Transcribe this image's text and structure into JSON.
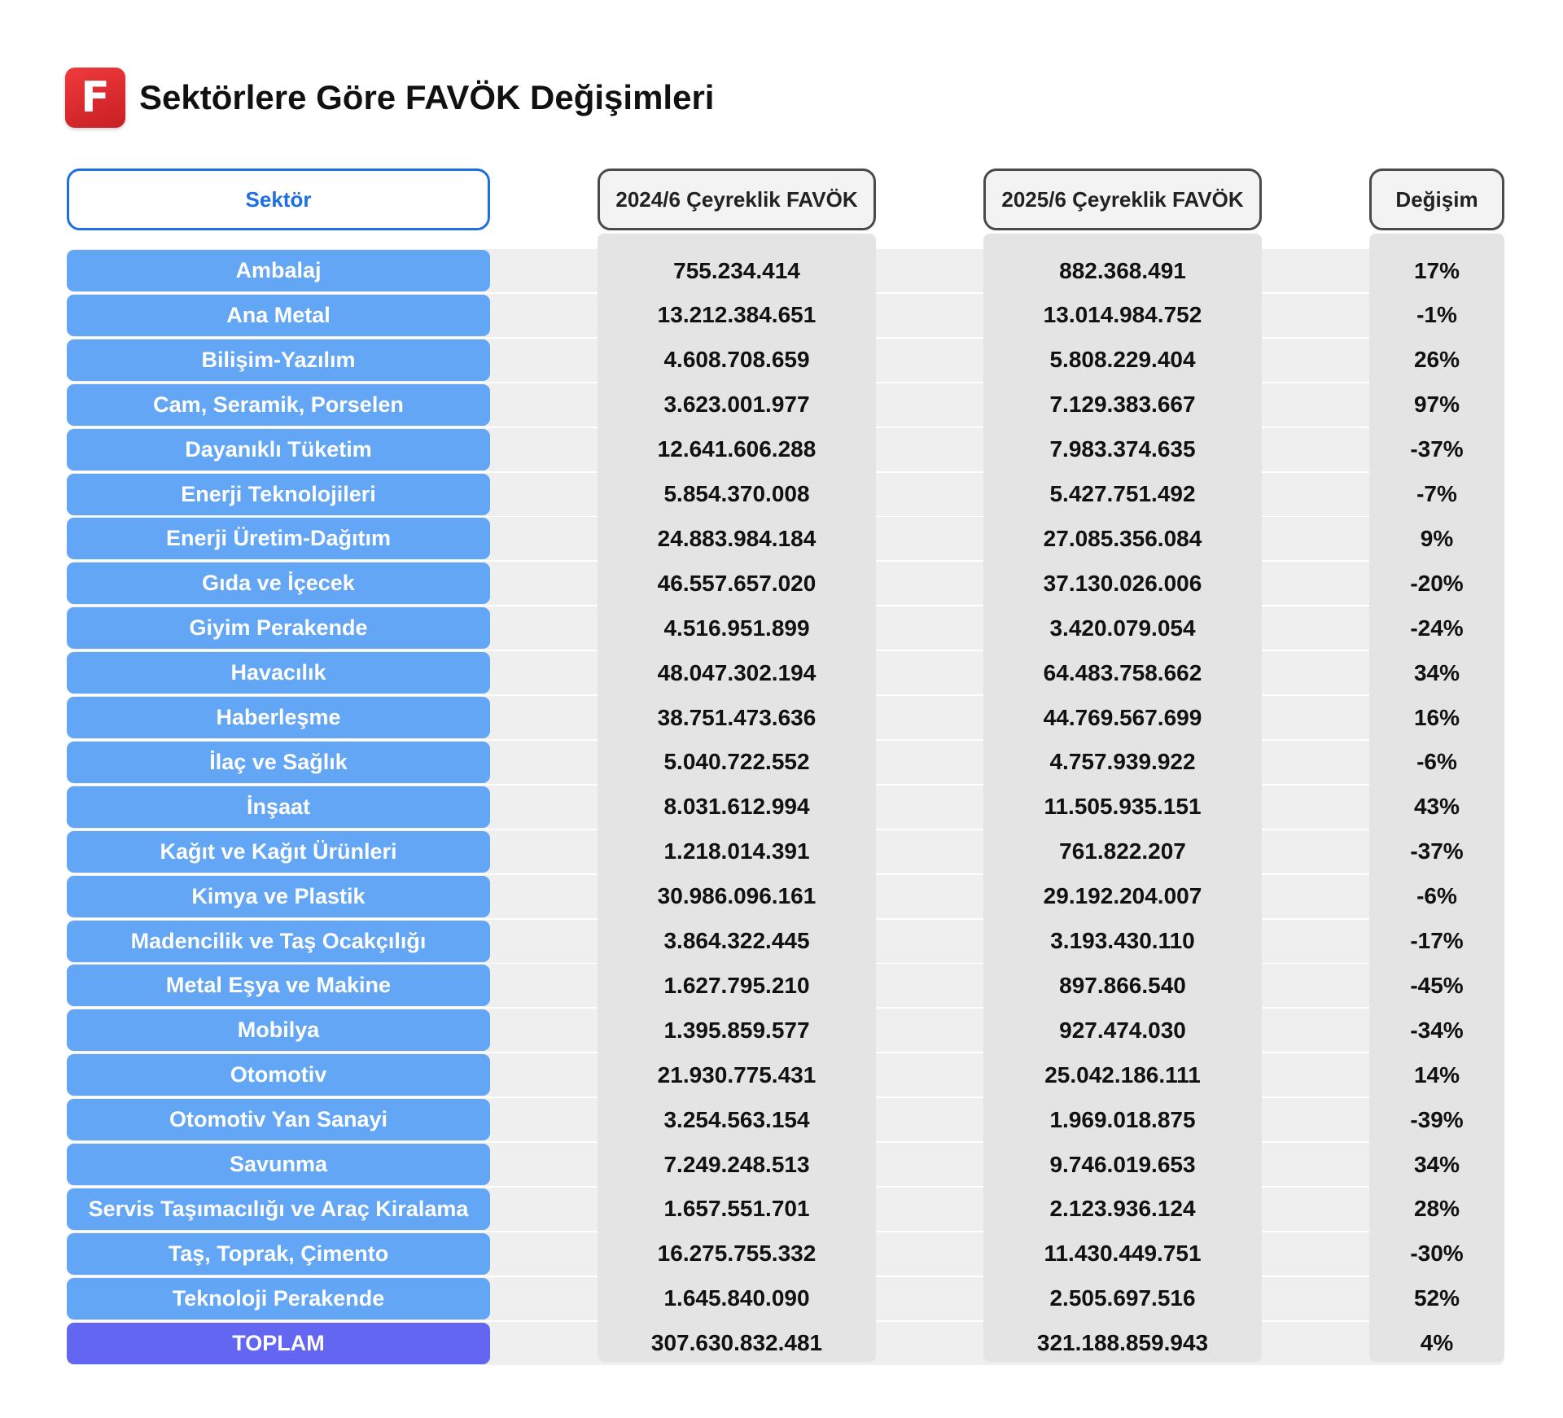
{
  "logo": {
    "letter": "F",
    "color": "#d9252c"
  },
  "title": "Sektörlere Göre FAVÖK Değişimleri",
  "columns": {
    "sector": "Sektör",
    "fav2024": "2024/6 Çeyreklik FAVÖK",
    "fav2025": "2025/6 Çeyreklik FAVÖK",
    "change": "Değişim"
  },
  "colors": {
    "sector_cell": "#63a6f5",
    "total_cell": "#6366f1",
    "header_accent": "#1e6fe0"
  },
  "rows": [
    {
      "sector": "Ambalaj",
      "fav2024": "755.234.414",
      "fav2025": "882.368.491",
      "change": "17%"
    },
    {
      "sector": "Ana Metal",
      "fav2024": "13.212.384.651",
      "fav2025": "13.014.984.752",
      "change": "-1%"
    },
    {
      "sector": "Bilişim-Yazılım",
      "fav2024": "4.608.708.659",
      "fav2025": "5.808.229.404",
      "change": "26%"
    },
    {
      "sector": "Cam, Seramik, Porselen",
      "fav2024": "3.623.001.977",
      "fav2025": "7.129.383.667",
      "change": "97%"
    },
    {
      "sector": "Dayanıklı Tüketim",
      "fav2024": "12.641.606.288",
      "fav2025": "7.983.374.635",
      "change": "-37%"
    },
    {
      "sector": "Enerji Teknolojileri",
      "fav2024": "5.854.370.008",
      "fav2025": "5.427.751.492",
      "change": "-7%"
    },
    {
      "sector": "Enerji Üretim-Dağıtım",
      "fav2024": "24.883.984.184",
      "fav2025": "27.085.356.084",
      "change": "9%"
    },
    {
      "sector": "Gıda ve İçecek",
      "fav2024": "46.557.657.020",
      "fav2025": "37.130.026.006",
      "change": "-20%"
    },
    {
      "sector": "Giyim Perakende",
      "fav2024": "4.516.951.899",
      "fav2025": "3.420.079.054",
      "change": "-24%"
    },
    {
      "sector": "Havacılık",
      "fav2024": "48.047.302.194",
      "fav2025": "64.483.758.662",
      "change": "34%"
    },
    {
      "sector": "Haberleşme",
      "fav2024": "38.751.473.636",
      "fav2025": "44.769.567.699",
      "change": "16%"
    },
    {
      "sector": "İlaç ve Sağlık",
      "fav2024": "5.040.722.552",
      "fav2025": "4.757.939.922",
      "change": "-6%"
    },
    {
      "sector": "İnşaat",
      "fav2024": "8.031.612.994",
      "fav2025": "11.505.935.151",
      "change": "43%"
    },
    {
      "sector": "Kağıt ve Kağıt Ürünleri",
      "fav2024": "1.218.014.391",
      "fav2025": "761.822.207",
      "change": "-37%"
    },
    {
      "sector": "Kimya ve Plastik",
      "fav2024": "30.986.096.161",
      "fav2025": "29.192.204.007",
      "change": "-6%"
    },
    {
      "sector": "Madencilik ve Taş Ocakçılığı",
      "fav2024": "3.864.322.445",
      "fav2025": "3.193.430.110",
      "change": "-17%"
    },
    {
      "sector": "Metal Eşya ve Makine",
      "fav2024": "1.627.795.210",
      "fav2025": "897.866.540",
      "change": "-45%"
    },
    {
      "sector": "Mobilya",
      "fav2024": "1.395.859.577",
      "fav2025": "927.474.030",
      "change": "-34%"
    },
    {
      "sector": "Otomotiv",
      "fav2024": "21.930.775.431",
      "fav2025": "25.042.186.111",
      "change": "14%"
    },
    {
      "sector": "Otomotiv Yan Sanayi",
      "fav2024": "3.254.563.154",
      "fav2025": "1.969.018.875",
      "change": "-39%"
    },
    {
      "sector": "Savunma",
      "fav2024": "7.249.248.513",
      "fav2025": "9.746.019.653",
      "change": "34%"
    },
    {
      "sector": "Servis Taşımacılığı ve Araç Kiralama",
      "fav2024": "1.657.551.701",
      "fav2025": "2.123.936.124",
      "change": "28%"
    },
    {
      "sector": "Taş, Toprak, Çimento",
      "fav2024": "16.275.755.332",
      "fav2025": "11.430.449.751",
      "change": "-30%"
    },
    {
      "sector": "Teknoloji Perakende",
      "fav2024": "1.645.840.090",
      "fav2025": "2.505.697.516",
      "change": "52%"
    }
  ],
  "total": {
    "sector": "TOPLAM",
    "fav2024": "307.630.832.481",
    "fav2025": "321.188.859.943",
    "change": "4%"
  }
}
